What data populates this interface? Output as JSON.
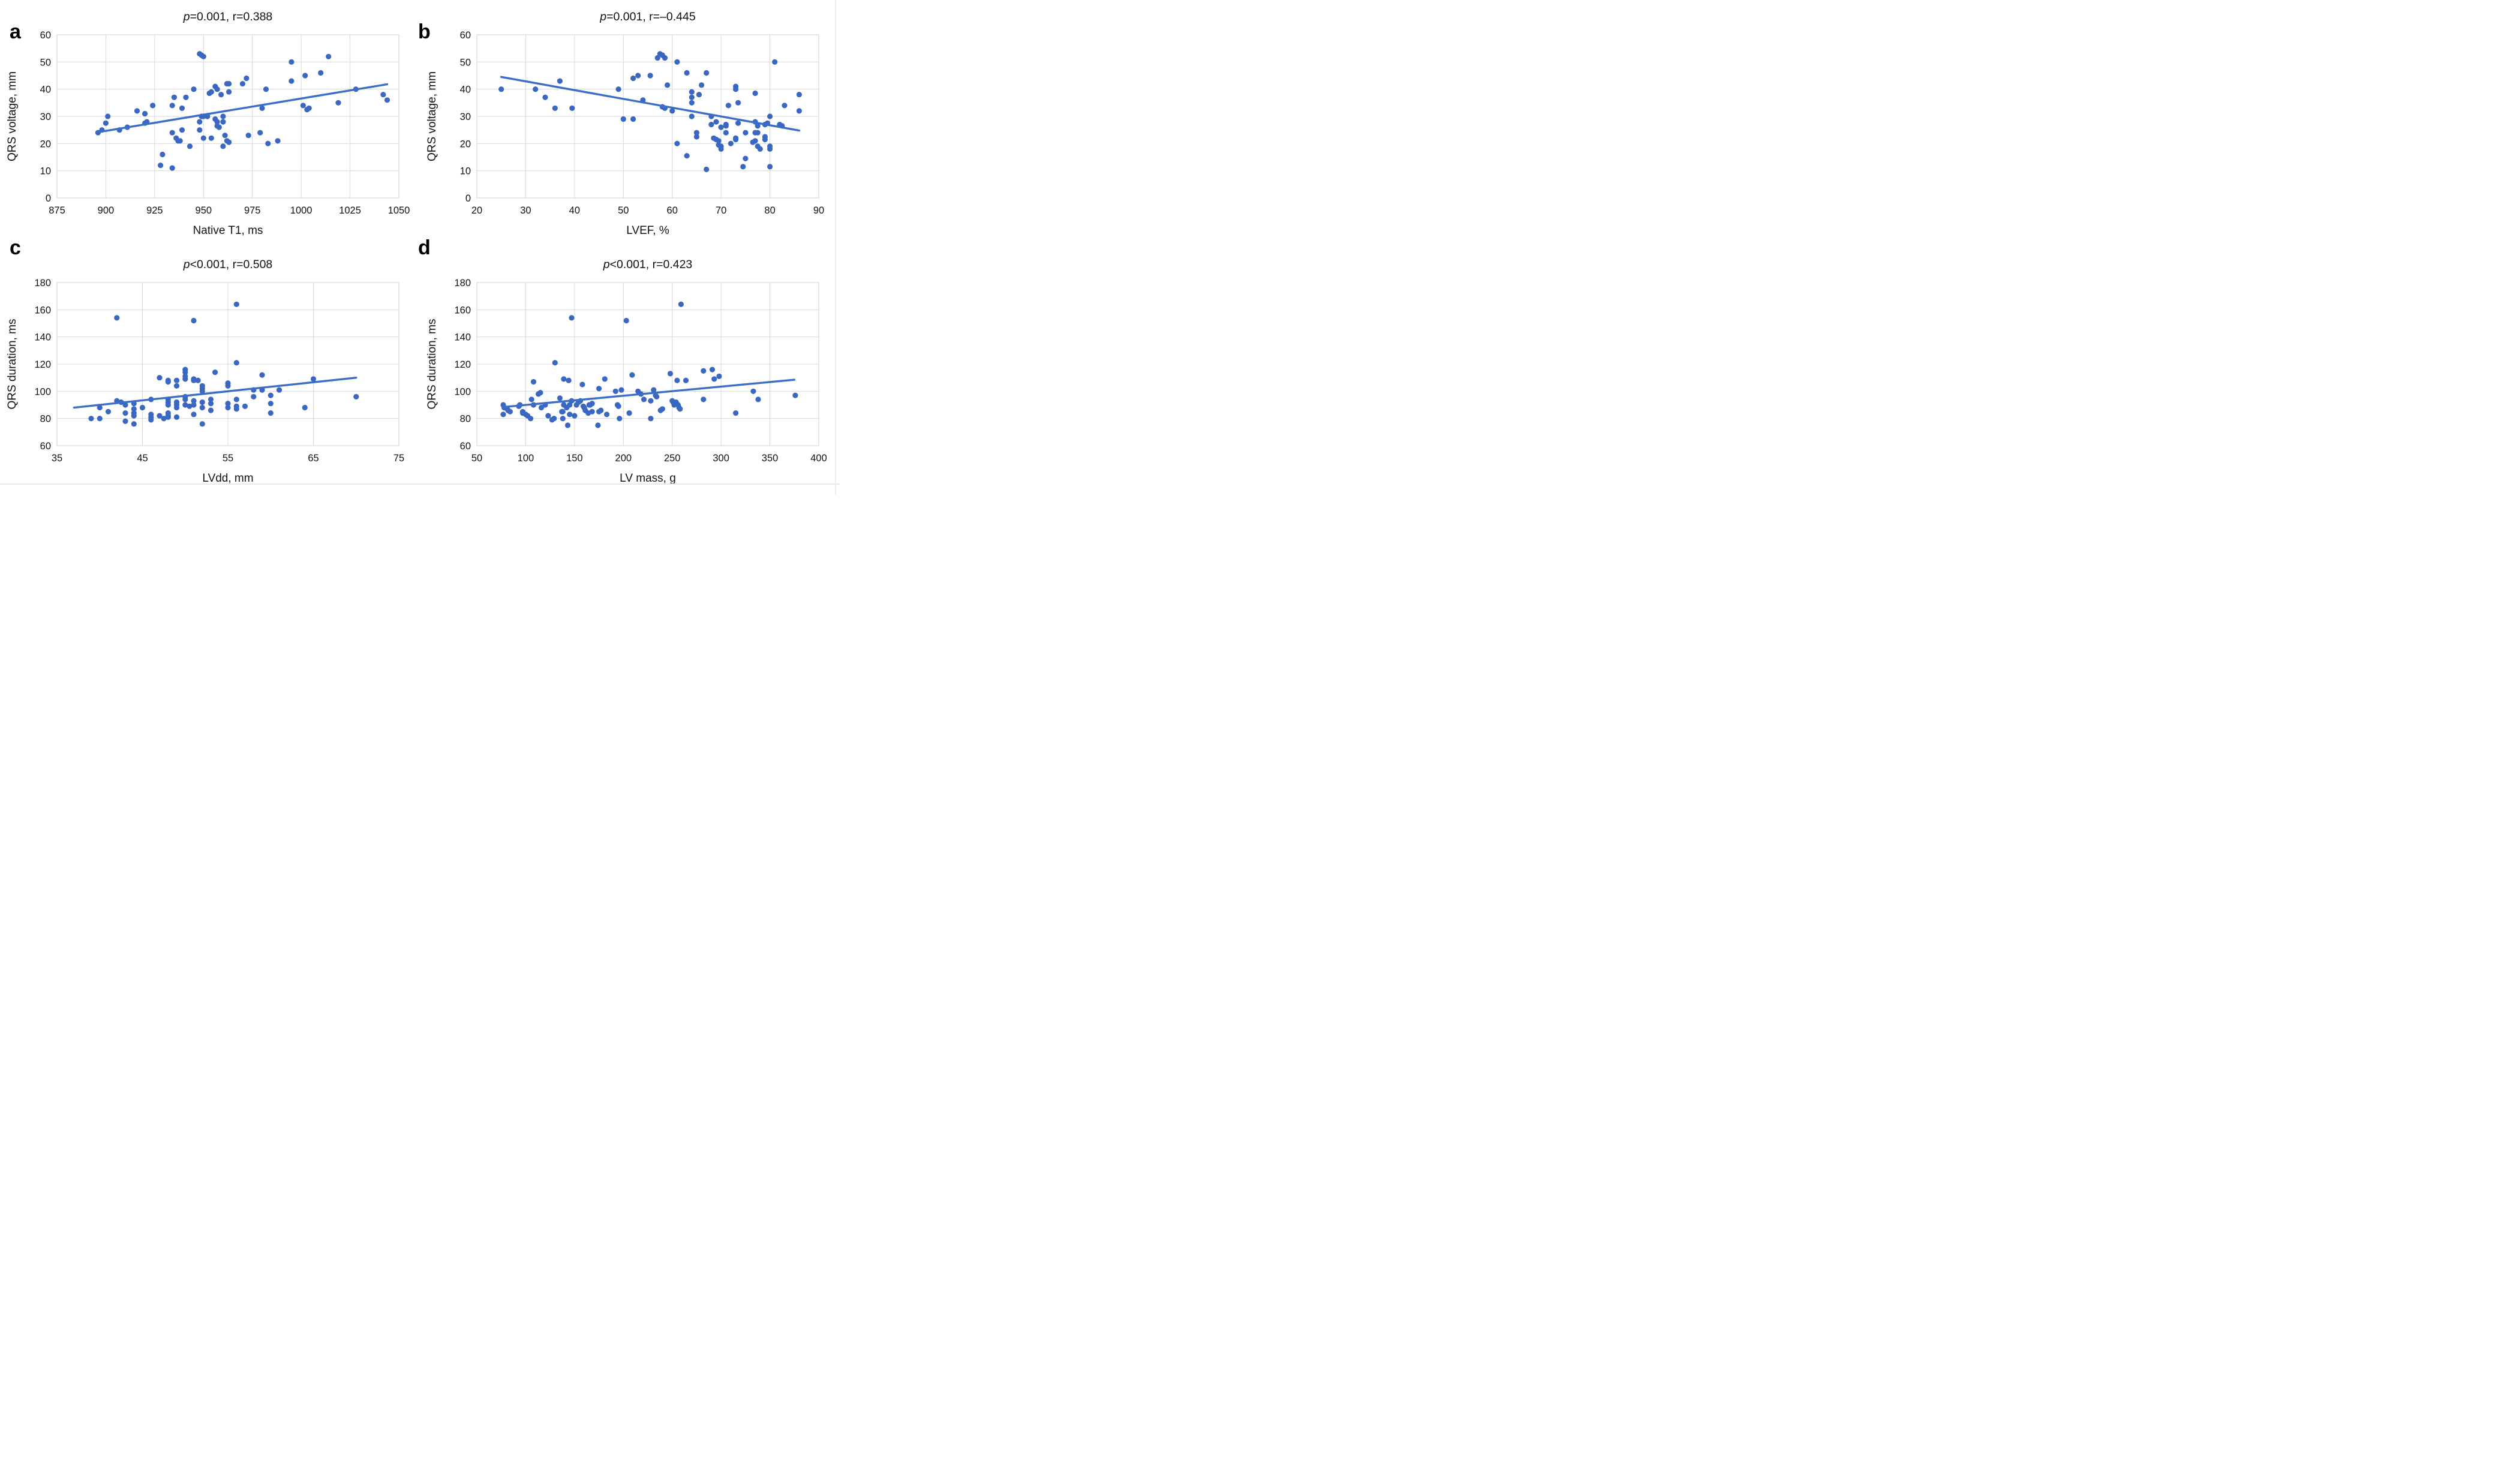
{
  "colors": {
    "point": "#3a67c1",
    "trendline": "#3c6ec9",
    "gridline": "#d8d8d8",
    "text": "#111111",
    "background": "#ffffff"
  },
  "chart_data": [
    {
      "type": "scatter",
      "panel_label": "a",
      "title_italic": "p",
      "title_rest": "=0.001, r=0.388",
      "xlabel": "Native T1, ms",
      "ylabel": "QRS voltage, mm",
      "x_min": 875,
      "x_max": 1050,
      "x_step": 25,
      "y_min": 0,
      "y_max": 60,
      "y_step": 10,
      "grid": true,
      "legend": "none",
      "trend": [
        [
          897,
          24.3
        ],
        [
          1044,
          41.8
        ]
      ],
      "points": [
        [
          896,
          24
        ],
        [
          898,
          25
        ],
        [
          900,
          27.5
        ],
        [
          901,
          30
        ],
        [
          907,
          25
        ],
        [
          911,
          26
        ],
        [
          916,
          32
        ],
        [
          920,
          31
        ],
        [
          920,
          27.5
        ],
        [
          921,
          28
        ],
        [
          924,
          34
        ],
        [
          928,
          12
        ],
        [
          929,
          16
        ],
        [
          934,
          11
        ],
        [
          934,
          24
        ],
        [
          934,
          34
        ],
        [
          935,
          37
        ],
        [
          936,
          22
        ],
        [
          937,
          21
        ],
        [
          938,
          21
        ],
        [
          939,
          33
        ],
        [
          939,
          25
        ],
        [
          941,
          37
        ],
        [
          943,
          19
        ],
        [
          945,
          40
        ],
        [
          948,
          53
        ],
        [
          949,
          52.5
        ],
        [
          950,
          52
        ],
        [
          948,
          28
        ],
        [
          948,
          25
        ],
        [
          949,
          30
        ],
        [
          950,
          30
        ],
        [
          950,
          22
        ],
        [
          952,
          30
        ],
        [
          953,
          38.5
        ],
        [
          954,
          39
        ],
        [
          954,
          22
        ],
        [
          956,
          41
        ],
        [
          957,
          40
        ],
        [
          956,
          29
        ],
        [
          957,
          28
        ],
        [
          957,
          26.5
        ],
        [
          958,
          26
        ],
        [
          959,
          38
        ],
        [
          960,
          28
        ],
        [
          960,
          30
        ],
        [
          960,
          19
        ],
        [
          961,
          23
        ],
        [
          962,
          42
        ],
        [
          963,
          42
        ],
        [
          963,
          39
        ],
        [
          962,
          21
        ],
        [
          963,
          20.5
        ],
        [
          970,
          42
        ],
        [
          972,
          44
        ],
        [
          973,
          23
        ],
        [
          979,
          24
        ],
        [
          980,
          33
        ],
        [
          982,
          40
        ],
        [
          983,
          20
        ],
        [
          988,
          21
        ],
        [
          995,
          50
        ],
        [
          995,
          43
        ],
        [
          1001,
          34
        ],
        [
          1002,
          45
        ],
        [
          1003,
          32.5
        ],
        [
          1004,
          33
        ],
        [
          1010,
          46
        ],
        [
          1014,
          52
        ],
        [
          1019,
          35
        ],
        [
          1028,
          40
        ],
        [
          1042,
          38
        ],
        [
          1044,
          36
        ]
      ]
    },
    {
      "type": "scatter",
      "panel_label": "b",
      "title_italic": "p",
      "title_rest": "=0.001, r=–0.445",
      "xlabel": "LVEF, %",
      "ylabel": "QRS voltage, mm",
      "x_min": 20,
      "x_max": 90,
      "x_step": 10,
      "y_min": 0,
      "y_max": 60,
      "y_step": 10,
      "grid": true,
      "legend": "none",
      "trend": [
        [
          25,
          44.5
        ],
        [
          86,
          24.8
        ]
      ],
      "points": [
        [
          25,
          40
        ],
        [
          32,
          40
        ],
        [
          34,
          37
        ],
        [
          36,
          33
        ],
        [
          37,
          43
        ],
        [
          39.5,
          33
        ],
        [
          49,
          40
        ],
        [
          50,
          29
        ],
        [
          52,
          44
        ],
        [
          52,
          29
        ],
        [
          53,
          45
        ],
        [
          54,
          36
        ],
        [
          55.5,
          45
        ],
        [
          57,
          51.5
        ],
        [
          57.5,
          53
        ],
        [
          58,
          52.5
        ],
        [
          58.5,
          51.5
        ],
        [
          58,
          33.5
        ],
        [
          58.5,
          33
        ],
        [
          59,
          41.5
        ],
        [
          60,
          32
        ],
        [
          61,
          50
        ],
        [
          61,
          20
        ],
        [
          63,
          46
        ],
        [
          63,
          15.5
        ],
        [
          64,
          39
        ],
        [
          64,
          37
        ],
        [
          64,
          35
        ],
        [
          64,
          30
        ],
        [
          65,
          24
        ],
        [
          65,
          22.5
        ],
        [
          65.5,
          38
        ],
        [
          66,
          41.5
        ],
        [
          67,
          46
        ],
        [
          67,
          10.5
        ],
        [
          68,
          30
        ],
        [
          68,
          27
        ],
        [
          68.5,
          22
        ],
        [
          69,
          28
        ],
        [
          69,
          21.5
        ],
        [
          69.5,
          21
        ],
        [
          69.5,
          19.5
        ],
        [
          70,
          26
        ],
        [
          70,
          19
        ],
        [
          70,
          18
        ],
        [
          71,
          27
        ],
        [
          71,
          26.5
        ],
        [
          71,
          24
        ],
        [
          71.5,
          34
        ],
        [
          72,
          20
        ],
        [
          73,
          41
        ],
        [
          73,
          40
        ],
        [
          73,
          22
        ],
        [
          73,
          21.5
        ],
        [
          73.5,
          35
        ],
        [
          73.5,
          27.5
        ],
        [
          74.5,
          11.5
        ],
        [
          75,
          24
        ],
        [
          75,
          14.5
        ],
        [
          76.5,
          20.5
        ],
        [
          77,
          38.5
        ],
        [
          77,
          28
        ],
        [
          77,
          24
        ],
        [
          77,
          21
        ],
        [
          77.5,
          26.5
        ],
        [
          77.5,
          24
        ],
        [
          77.5,
          19
        ],
        [
          78,
          18
        ],
        [
          79,
          27
        ],
        [
          79,
          22.5
        ],
        [
          79,
          21.5
        ],
        [
          79.5,
          27.5
        ],
        [
          80,
          30
        ],
        [
          80,
          19
        ],
        [
          80,
          18
        ],
        [
          80,
          11.5
        ],
        [
          81,
          50
        ],
        [
          82,
          27
        ],
        [
          82.5,
          26.5
        ],
        [
          83,
          34
        ],
        [
          86,
          38
        ],
        [
          86,
          32
        ]
      ]
    },
    {
      "type": "scatter",
      "panel_label": "c",
      "title_italic": "p",
      "title_rest": "<0.001, r=0.508",
      "xlabel": "LVdd, mm",
      "ylabel": "QRS duration, ms",
      "x_min": 35,
      "x_max": 75,
      "x_step": 10,
      "y_min": 60,
      "y_max": 180,
      "y_step": 20,
      "grid": true,
      "legend": "none",
      "trend": [
        [
          37,
          88
        ],
        [
          70,
          110
        ]
      ],
      "points": [
        [
          39,
          80
        ],
        [
          40,
          80
        ],
        [
          40,
          88
        ],
        [
          41,
          85
        ],
        [
          42,
          154
        ],
        [
          42,
          93
        ],
        [
          42.5,
          92
        ],
        [
          43,
          78
        ],
        [
          43,
          84
        ],
        [
          43,
          90
        ],
        [
          44,
          84
        ],
        [
          44,
          82
        ],
        [
          44,
          87
        ],
        [
          44,
          76
        ],
        [
          44,
          91
        ],
        [
          45,
          88
        ],
        [
          46,
          79
        ],
        [
          46,
          83
        ],
        [
          46,
          81
        ],
        [
          46,
          94
        ],
        [
          47,
          82
        ],
        [
          47,
          110
        ],
        [
          47.5,
          80
        ],
        [
          48,
          107
        ],
        [
          48,
          92
        ],
        [
          48,
          90
        ],
        [
          48,
          94
        ],
        [
          48,
          84
        ],
        [
          48,
          82
        ],
        [
          48,
          81
        ],
        [
          48,
          108
        ],
        [
          49,
          104
        ],
        [
          49,
          108
        ],
        [
          49,
          90
        ],
        [
          49,
          88
        ],
        [
          49,
          92
        ],
        [
          49,
          81
        ],
        [
          50,
          116
        ],
        [
          50,
          114
        ],
        [
          50,
          111
        ],
        [
          50,
          109
        ],
        [
          50,
          96
        ],
        [
          50,
          94
        ],
        [
          50,
          90
        ],
        [
          50.5,
          89
        ],
        [
          51,
          152
        ],
        [
          51,
          109
        ],
        [
          51,
          108
        ],
        [
          51.5,
          108
        ],
        [
          51,
          93
        ],
        [
          51,
          90
        ],
        [
          51,
          83
        ],
        [
          52,
          102
        ],
        [
          52,
          100
        ],
        [
          52,
          104
        ],
        [
          52,
          92
        ],
        [
          52,
          88
        ],
        [
          52,
          76
        ],
        [
          53,
          94
        ],
        [
          53,
          91
        ],
        [
          53,
          86
        ],
        [
          53.5,
          114
        ],
        [
          55,
          106
        ],
        [
          55,
          104
        ],
        [
          55,
          88
        ],
        [
          55,
          91
        ],
        [
          56,
          164
        ],
        [
          56,
          121
        ],
        [
          56,
          94
        ],
        [
          56,
          89
        ],
        [
          56,
          87
        ],
        [
          57,
          89
        ],
        [
          58,
          101
        ],
        [
          58,
          96
        ],
        [
          59,
          112
        ],
        [
          59,
          101
        ],
        [
          60,
          97
        ],
        [
          60,
          91
        ],
        [
          60,
          84
        ],
        [
          61,
          101
        ],
        [
          64,
          88
        ],
        [
          65,
          109
        ],
        [
          70,
          96
        ]
      ]
    },
    {
      "type": "scatter",
      "panel_label": "d",
      "title_italic": "p",
      "title_rest": "<0.001, r=0.423",
      "xlabel": "LV mass, g",
      "ylabel": "QRS duration, ms",
      "x_min": 50,
      "x_max": 400,
      "x_step": 50,
      "y_min": 60,
      "y_max": 180,
      "y_step": 20,
      "grid": true,
      "legend": "none",
      "trend": [
        [
          78,
          88.5
        ],
        [
          375,
          108.5
        ]
      ],
      "points": [
        [
          77,
          90
        ],
        [
          78,
          88
        ],
        [
          77,
          83
        ],
        [
          81,
          87
        ],
        [
          82,
          86
        ],
        [
          84,
          85
        ],
        [
          93,
          89
        ],
        [
          94,
          90
        ],
        [
          97,
          85
        ],
        [
          97,
          84
        ],
        [
          100,
          83
        ],
        [
          102,
          82
        ],
        [
          105,
          80
        ],
        [
          106,
          94
        ],
        [
          108,
          107
        ],
        [
          108,
          90
        ],
        [
          113,
          98
        ],
        [
          115,
          99
        ],
        [
          116,
          88
        ],
        [
          120,
          90
        ],
        [
          123,
          82
        ],
        [
          127,
          79
        ],
        [
          129,
          80
        ],
        [
          130,
          121
        ],
        [
          135,
          95
        ],
        [
          137,
          85
        ],
        [
          138,
          85
        ],
        [
          139,
          90
        ],
        [
          138,
          80
        ],
        [
          139,
          109
        ],
        [
          142,
          88
        ],
        [
          143,
          75
        ],
        [
          144,
          108
        ],
        [
          145,
          90
        ],
        [
          145,
          83
        ],
        [
          147,
          154
        ],
        [
          147,
          93
        ],
        [
          150,
          82
        ],
        [
          152,
          90
        ],
        [
          154,
          92
        ],
        [
          156,
          93
        ],
        [
          158,
          105
        ],
        [
          159,
          89
        ],
        [
          160,
          88
        ],
        [
          161,
          86
        ],
        [
          164,
          84
        ],
        [
          165,
          90
        ],
        [
          166,
          90
        ],
        [
          168,
          85
        ],
        [
          168,
          91
        ],
        [
          174,
          75
        ],
        [
          175,
          102
        ],
        [
          175,
          85
        ],
        [
          177,
          86
        ],
        [
          181,
          109
        ],
        [
          183,
          83
        ],
        [
          192,
          100
        ],
        [
          194,
          90
        ],
        [
          195,
          89
        ],
        [
          196,
          80
        ],
        [
          198,
          101
        ],
        [
          203,
          152
        ],
        [
          206,
          84
        ],
        [
          209,
          112
        ],
        [
          215,
          100
        ],
        [
          218,
          98
        ],
        [
          221,
          94
        ],
        [
          228,
          93
        ],
        [
          228,
          80
        ],
        [
          231,
          101
        ],
        [
          233,
          97
        ],
        [
          234,
          96
        ],
        [
          238,
          86
        ],
        [
          240,
          87
        ],
        [
          248,
          113
        ],
        [
          250,
          93
        ],
        [
          251,
          92
        ],
        [
          252,
          90
        ],
        [
          254,
          92
        ],
        [
          256,
          90
        ],
        [
          257,
          88
        ],
        [
          258,
          87
        ],
        [
          259,
          164
        ],
        [
          255,
          108
        ],
        [
          264,
          108
        ],
        [
          282,
          115
        ],
        [
          291,
          116
        ],
        [
          293,
          109
        ],
        [
          298,
          111
        ],
        [
          282,
          94
        ],
        [
          315,
          84
        ],
        [
          333,
          100
        ],
        [
          338,
          94
        ],
        [
          376,
          97
        ]
      ]
    }
  ]
}
